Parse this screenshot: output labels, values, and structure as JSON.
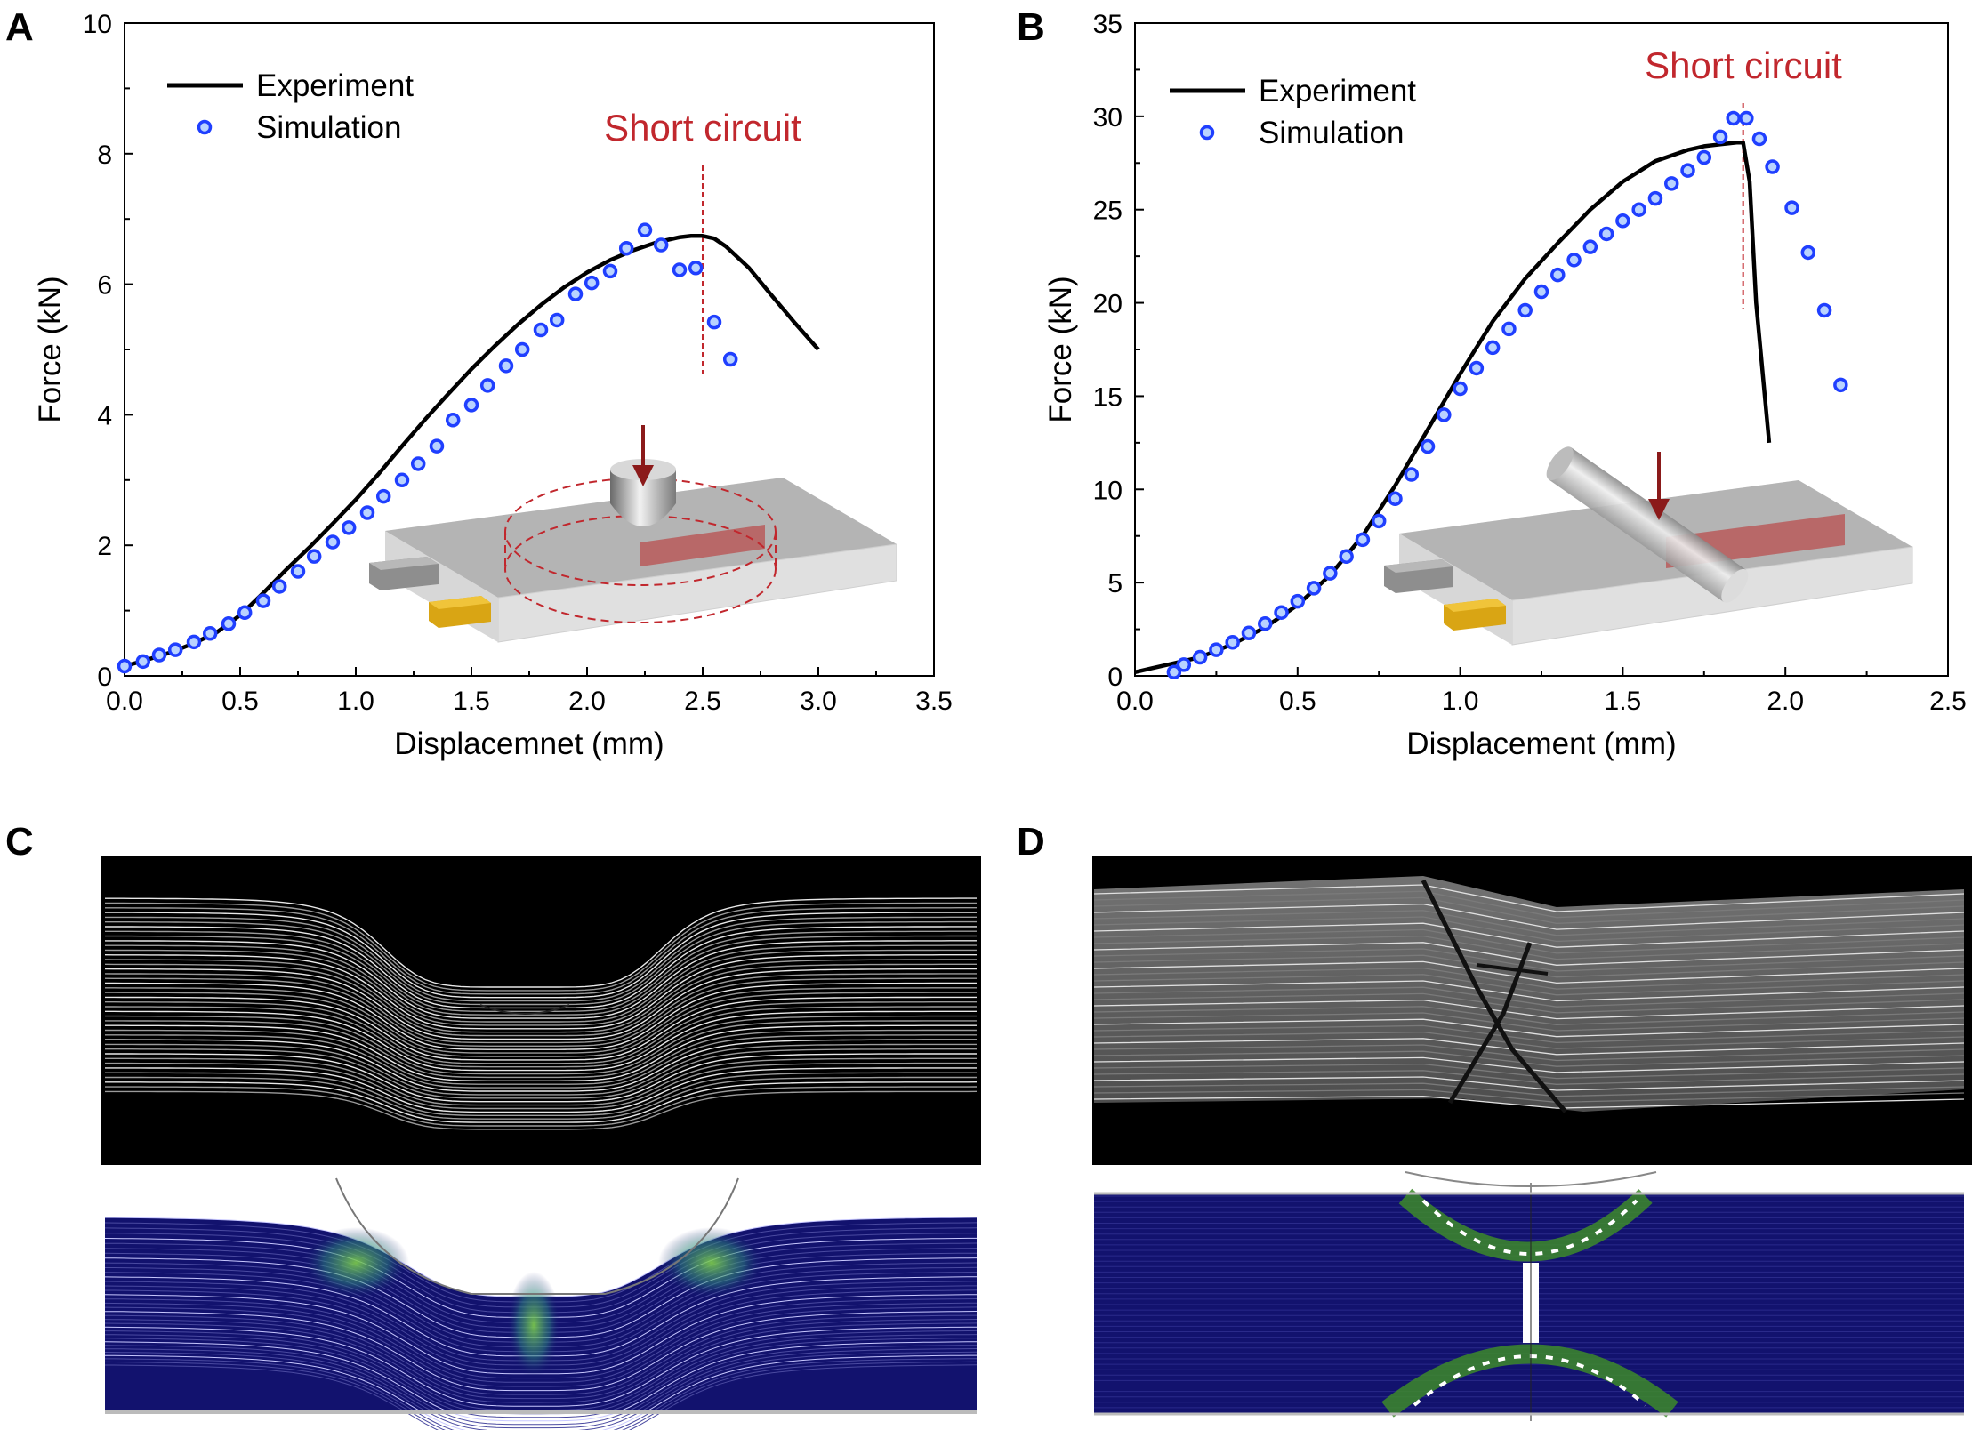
{
  "panels": {
    "a": "A",
    "b": "B",
    "c": "C",
    "d": "D"
  },
  "colors": {
    "experiment": "#000000",
    "simulation_edge": "#1f3fff",
    "simulation_fill": "#b9d3ff",
    "short_circuit": "#c1272d",
    "indenter_arrow": "#8b1a1a",
    "tab_gold": "#e3b21a",
    "ct_background": "#000000",
    "fea_field": "#12126e"
  },
  "icons": {
    "inset_a": "spherical-indenter-on-cell-icon",
    "inset_b": "cylinder-indenter-on-cell-icon",
    "image_c": "ct-scan-and-fea-contour-spherical",
    "image_d": "ct-scan-and-fea-contour-cylindrical"
  },
  "chart_data": [
    {
      "type": "line",
      "panel": "A",
      "title": "",
      "xlabel": "Displacemnet (mm)",
      "ylabel": "Force (kN)",
      "xlim": [
        0,
        3.5
      ],
      "ylim": [
        0,
        10
      ],
      "xticks": [
        "0.0",
        "0.5",
        "1.0",
        "1.5",
        "2.0",
        "2.5",
        "3.0",
        "3.5"
      ],
      "yticks": [
        "0",
        "2",
        "4",
        "6",
        "8",
        "10"
      ],
      "legend": {
        "position": "top-left",
        "entries": [
          "Experiment",
          "Simulation"
        ]
      },
      "annotation": {
        "text": "Short circuit",
        "x": 2.5
      },
      "series": [
        {
          "name": "Experiment",
          "style": "line",
          "x": [
            0,
            0.1,
            0.2,
            0.3,
            0.4,
            0.5,
            0.6,
            0.7,
            0.8,
            0.9,
            1.0,
            1.1,
            1.2,
            1.3,
            1.4,
            1.5,
            1.6,
            1.7,
            1.8,
            1.9,
            2.0,
            2.1,
            2.2,
            2.3,
            2.4,
            2.45,
            2.5,
            2.55,
            2.6,
            2.7,
            2.8,
            2.9,
            3.0
          ],
          "y": [
            0.15,
            0.25,
            0.36,
            0.5,
            0.67,
            0.93,
            1.27,
            1.63,
            1.97,
            2.33,
            2.7,
            3.1,
            3.52,
            3.93,
            4.32,
            4.7,
            5.05,
            5.38,
            5.68,
            5.95,
            6.18,
            6.37,
            6.52,
            6.64,
            6.72,
            6.74,
            6.74,
            6.7,
            6.58,
            6.25,
            5.82,
            5.4,
            5.0
          ]
        },
        {
          "name": "Simulation",
          "style": "markers",
          "x": [
            0.0,
            0.08,
            0.15,
            0.22,
            0.3,
            0.37,
            0.45,
            0.52,
            0.6,
            0.67,
            0.75,
            0.82,
            0.9,
            0.97,
            1.05,
            1.12,
            1.2,
            1.27,
            1.35,
            1.42,
            1.5,
            1.57,
            1.65,
            1.72,
            1.8,
            1.87,
            1.95,
            2.02,
            2.1,
            2.17,
            2.25,
            2.32,
            2.4,
            2.47,
            2.55,
            2.62
          ],
          "y": [
            0.15,
            0.22,
            0.32,
            0.4,
            0.52,
            0.65,
            0.8,
            0.97,
            1.15,
            1.37,
            1.6,
            1.83,
            2.05,
            2.27,
            2.5,
            2.75,
            3.0,
            3.25,
            3.52,
            3.92,
            4.15,
            4.45,
            4.75,
            5.0,
            5.3,
            5.45,
            5.85,
            6.02,
            6.2,
            6.55,
            6.83,
            6.6,
            6.22,
            6.25,
            5.42,
            4.85
          ]
        }
      ]
    },
    {
      "type": "line",
      "panel": "B",
      "title": "",
      "xlabel": "Displacement (mm)",
      "ylabel": "Force (kN)",
      "xlim": [
        0,
        2.5
      ],
      "ylim": [
        0,
        35
      ],
      "xticks": [
        "0.0",
        "0.5",
        "1.0",
        "1.5",
        "2.0",
        "2.5"
      ],
      "yticks": [
        "0",
        "5",
        "10",
        "15",
        "20",
        "25",
        "30",
        "35"
      ],
      "legend": {
        "position": "top-left",
        "entries": [
          "Experiment",
          "Simulation"
        ]
      },
      "annotation": {
        "text": "Short circuit",
        "x": 1.87
      },
      "series": [
        {
          "name": "Experiment",
          "style": "line",
          "x": [
            0,
            0.05,
            0.1,
            0.2,
            0.3,
            0.4,
            0.5,
            0.6,
            0.7,
            0.8,
            0.9,
            1.0,
            1.1,
            1.2,
            1.3,
            1.4,
            1.5,
            1.6,
            1.7,
            1.75,
            1.8,
            1.85,
            1.87,
            1.89,
            1.91,
            1.95
          ],
          "y": [
            0.2,
            0.4,
            0.6,
            1.0,
            1.7,
            2.6,
            3.8,
            5.4,
            7.5,
            10.2,
            13.2,
            16.2,
            19.0,
            21.3,
            23.2,
            25.0,
            26.5,
            27.6,
            28.2,
            28.4,
            28.5,
            28.6,
            28.6,
            26.5,
            20.0,
            12.5
          ]
        },
        {
          "name": "Simulation",
          "style": "markers",
          "x": [
            0.12,
            0.15,
            0.2,
            0.25,
            0.3,
            0.35,
            0.4,
            0.45,
            0.5,
            0.55,
            0.6,
            0.65,
            0.7,
            0.75,
            0.8,
            0.85,
            0.9,
            0.95,
            1.0,
            1.05,
            1.1,
            1.15,
            1.2,
            1.25,
            1.3,
            1.35,
            1.4,
            1.45,
            1.5,
            1.55,
            1.6,
            1.65,
            1.7,
            1.75,
            1.8,
            1.84,
            1.88,
            1.92,
            1.96,
            2.02,
            2.07,
            2.12,
            2.17
          ],
          "y": [
            0.2,
            0.6,
            1.0,
            1.4,
            1.8,
            2.3,
            2.8,
            3.4,
            4.0,
            4.7,
            5.5,
            6.4,
            7.3,
            8.3,
            9.5,
            10.8,
            12.3,
            14.0,
            15.4,
            16.5,
            17.6,
            18.6,
            19.6,
            20.6,
            21.5,
            22.3,
            23.0,
            23.7,
            24.4,
            25.0,
            25.6,
            26.4,
            27.1,
            27.8,
            28.9,
            29.9,
            29.9,
            28.8,
            27.3,
            25.1,
            22.7,
            19.6,
            15.6
          ]
        }
      ]
    }
  ]
}
